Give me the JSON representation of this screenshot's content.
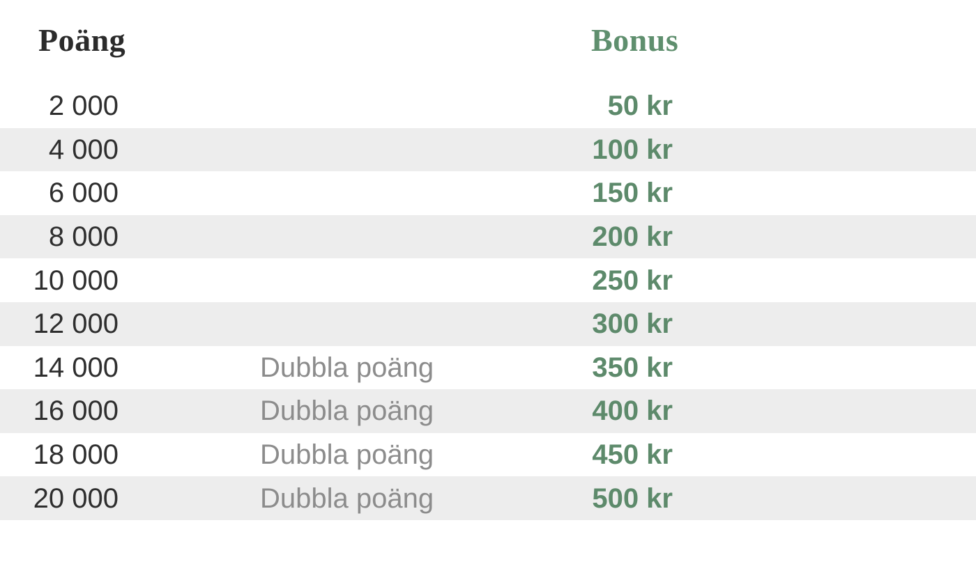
{
  "chart_data": {
    "type": "table",
    "headers": {
      "points": "Poäng",
      "note": "",
      "bonus": "Bonus"
    },
    "rows": [
      {
        "points": "2 000",
        "note": "",
        "bonus": "50 kr"
      },
      {
        "points": "4 000",
        "note": "",
        "bonus": "100 kr"
      },
      {
        "points": "6 000",
        "note": "",
        "bonus": "150 kr"
      },
      {
        "points": "8 000",
        "note": "",
        "bonus": "200 kr"
      },
      {
        "points": "10 000",
        "note": "",
        "bonus": "250 kr"
      },
      {
        "points": "12 000",
        "note": "",
        "bonus": "300 kr"
      },
      {
        "points": "14 000",
        "note": "Dubbla poäng",
        "bonus": "350 kr"
      },
      {
        "points": "16 000",
        "note": "Dubbla poäng",
        "bonus": "400 kr"
      },
      {
        "points": "18 000",
        "note": "Dubbla poäng",
        "bonus": "450 kr"
      },
      {
        "points": "20 000",
        "note": "Dubbla poäng",
        "bonus": "500 kr"
      }
    ],
    "points_values": [
      2000,
      4000,
      6000,
      8000,
      10000,
      12000,
      14000,
      16000,
      18000,
      20000
    ],
    "bonus_values_kr": [
      50,
      100,
      150,
      200,
      250,
      300,
      350,
      400,
      450,
      500
    ],
    "layout": {
      "row_striping": "alternating white and gray, starting white",
      "legend": "none",
      "grid": "off"
    }
  },
  "colors": {
    "accent_green": "#5d8a6b",
    "header_green": "#5f8f6e",
    "text_dark": "#2e2e2e",
    "header_dark": "#2b2b2b",
    "note_gray": "#8c8c8c",
    "row_alt_background": "#ededed",
    "page_background": "#ffffff"
  }
}
